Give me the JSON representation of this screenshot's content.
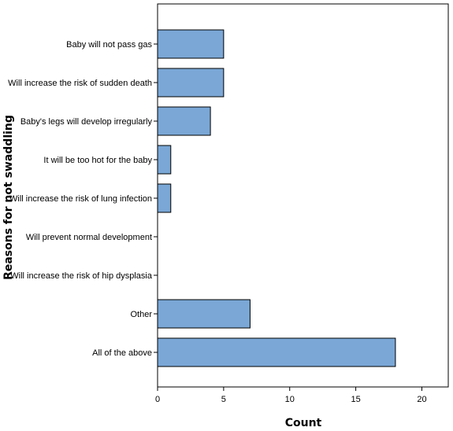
{
  "chart_data": {
    "type": "bar",
    "orientation": "horizontal",
    "categories": [
      "Baby will not pass gas",
      "Will increase the risk of sudden death",
      "Baby's legs will develop irregularly",
      "It will be too hot for the baby",
      "Will increase the risk of lung infection",
      "Will prevent normal development",
      "Will increase the risk of hip dysplasia",
      "Other",
      "All of the above"
    ],
    "values": [
      5,
      5,
      4,
      1,
      1,
      0,
      0,
      7,
      18
    ],
    "xlabel": "Count",
    "ylabel": "Reasons for not swaddling",
    "xlim": [
      0,
      22
    ],
    "xticks": [
      "0",
      "5",
      "10",
      "15",
      "20"
    ],
    "grid": false,
    "colors": {
      "bar": "#7aa7d6",
      "bar_stroke": "#000000",
      "background": "#ffffff"
    }
  }
}
